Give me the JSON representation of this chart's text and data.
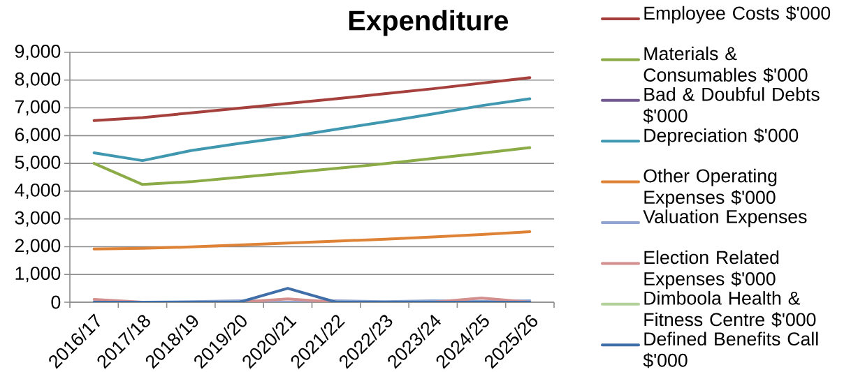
{
  "chart_data": {
    "type": "line",
    "title": "Expenditure",
    "categories": [
      "2016/17",
      "2017/18",
      "2018/19",
      "2019/20",
      "2020/21",
      "2021/22",
      "2022/23",
      "2023/24",
      "2024/25",
      "2025/26"
    ],
    "series": [
      {
        "name": "Employee Costs $'000",
        "color": "#a5403d",
        "values": [
          6540,
          6650,
          6820,
          6990,
          7160,
          7330,
          7510,
          7690,
          7890,
          8090
        ]
      },
      {
        "name": "Materials & Consumables $'000",
        "color": "#8aab46",
        "values": [
          5000,
          4240,
          4340,
          4500,
          4660,
          4820,
          4990,
          5180,
          5370,
          5570
        ]
      },
      {
        "name": "Bad & Doubful Debts $'000",
        "color": "#71588f",
        "values": [
          null,
          null,
          null,
          null,
          null,
          null,
          null,
          null,
          null,
          null
        ]
      },
      {
        "name": "Depreciation $'000",
        "color": "#3f97b0",
        "values": [
          5380,
          5100,
          5460,
          5720,
          5950,
          6230,
          6500,
          6780,
          7080,
          7330
        ]
      },
      {
        "name": "Other Operating Expenses $'000",
        "color": "#de8236",
        "values": [
          1920,
          1940,
          1990,
          2060,
          2130,
          2200,
          2270,
          2350,
          2440,
          2540
        ]
      },
      {
        "name": "Valuation Expenses",
        "color": "#8ea5cf",
        "values": [
          0,
          0,
          20,
          50,
          0,
          50,
          20,
          50,
          30,
          50
        ]
      },
      {
        "name": "Election Related Expenses $'000",
        "color": "#d28f8e",
        "values": [
          100,
          0,
          0,
          0,
          120,
          0,
          0,
          0,
          150,
          0
        ]
      },
      {
        "name": "Dimboola Health & Fitness Centre $'000",
        "color": "#b3d19a",
        "values": [
          null,
          null,
          null,
          null,
          null,
          null,
          null,
          null,
          null,
          null
        ]
      },
      {
        "name": "Defined Benefits Call $'000",
        "color": "#3f6ea8",
        "values": [
          0,
          0,
          0,
          0,
          500,
          0,
          0,
          0,
          0,
          0
        ]
      }
    ],
    "ylim": [
      0,
      9000
    ],
    "yticks": [
      0,
      {
        "value": 1000,
        "label": "1,000"
      },
      {
        "value": 2000,
        "label": "2,000"
      },
      {
        "value": 3000,
        "label": "3,000"
      },
      {
        "value": 4000,
        "label": "4,000"
      },
      {
        "value": 5000,
        "label": "5,000"
      },
      {
        "value": 6000,
        "label": "6,000"
      },
      {
        "value": 7000,
        "label": "7,000"
      },
      {
        "value": 8000,
        "label": "8,000"
      },
      {
        "value": 9000,
        "label": "9,000"
      }
    ],
    "grid": "y",
    "legend": "right"
  }
}
